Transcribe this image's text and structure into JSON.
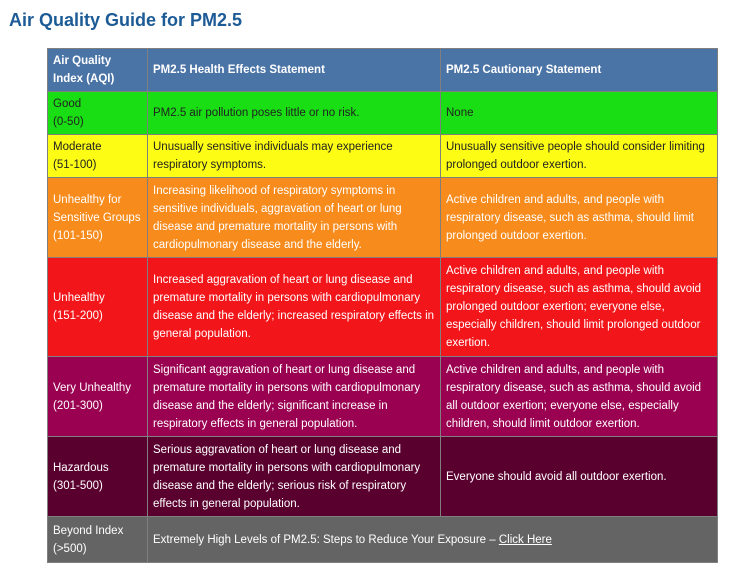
{
  "title": "Air Quality Guide for PM2.5",
  "colors": {
    "title": "#1d5b96",
    "header": "#4a73a6",
    "good": "#18de13",
    "moderate": "#fcfc15",
    "usg": "#f78b1c",
    "unhealthy": "#f2151a",
    "very_unhealthy": "#9a0151",
    "hazardous": "#5a002f",
    "beyond": "#646464"
  },
  "header": {
    "aqi_line1": "Air Quality",
    "aqi_line2": "Index (AQI)",
    "health": "PM2.5 Health Effects Statement",
    "caution": "PM2.5 Cautionary Statement"
  },
  "rows": [
    {
      "level": "Good",
      "range": "(0-50)",
      "health": "PM2.5 air pollution poses little or no risk.",
      "caution": "None"
    },
    {
      "level": "Moderate",
      "range": "(51-100)",
      "health": "Unusually sensitive individuals may experience respiratory symptoms.",
      "caution": "Unusually sensitive people should consider limiting prolonged outdoor exertion."
    },
    {
      "level": "Unhealthy for Sensitive Groups",
      "range": "(101-150)",
      "health": "Increasing likelihood of respiratory symptoms in sensitive individuals, aggravation of heart or lung disease and premature mortality in persons with cardiopulmonary disease and the elderly.",
      "caution": "Active children and adults, and people with respiratory disease, such as asthma, should limit prolonged outdoor exertion."
    },
    {
      "level": "Unhealthy",
      "range": "(151-200)",
      "health": "Increased aggravation of heart or lung disease and premature mortality in persons with cardiopulmonary disease and the elderly; increased respiratory effects in general population.",
      "caution": "Active children and adults, and people with respiratory disease, such as asthma, should avoid prolonged outdoor exertion; everyone else, especially children, should limit prolonged outdoor exertion."
    },
    {
      "level": "Very Unhealthy",
      "range": "(201-300)",
      "health": "Significant aggravation of heart or lung disease and premature mortality in persons with cardiopulmonary disease and the elderly; significant increase in respiratory effects in general population.",
      "caution": "Active children and adults, and people with respiratory disease, such as asthma, should avoid all outdoor exertion; everyone else, especially children, should limit outdoor exertion."
    },
    {
      "level": "Hazardous",
      "range": "(301-500)",
      "health": "Serious aggravation of heart or lung disease and premature mortality in persons with cardiopulmonary disease and the elderly; serious risk of respiratory effects in general population.",
      "caution": "Everyone should avoid all outdoor exertion."
    }
  ],
  "beyond": {
    "level": "Beyond Index",
    "range": "(>500)",
    "text": "Extremely High Levels of PM2.5: Steps to Reduce Your Exposure – ",
    "link": "Click Here"
  }
}
